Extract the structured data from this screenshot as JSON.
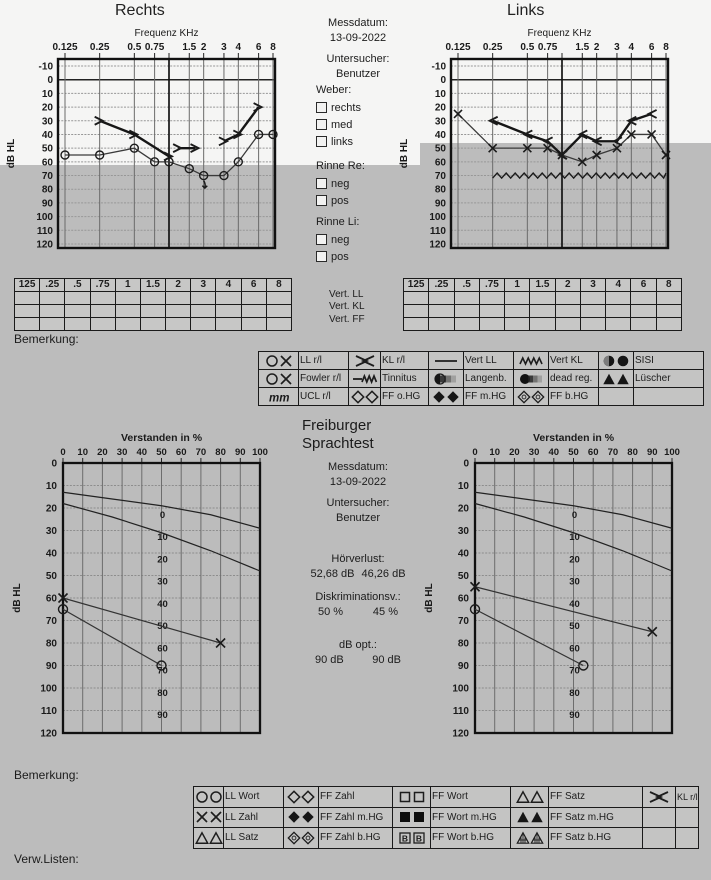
{
  "colors": {
    "band_gray": "#bcbcbc",
    "paper_white": "#f5f5f4",
    "cell_gray": "#c7c7c6",
    "ink": "#1c1c1c"
  },
  "header": {
    "right_title": "Rechts",
    "left_title": "Links"
  },
  "info_top": {
    "messdatum_label": "Messdatum:",
    "messdatum_value": "13-09-2022",
    "untersucher_label": "Untersucher:",
    "untersucher_value": "Benutzer",
    "weber": {
      "label": "Weber:",
      "options": [
        "rechts",
        "med",
        "links"
      ],
      "checked": [
        false,
        false,
        false
      ]
    },
    "rinne_re": {
      "label": "Rinne Re:",
      "options": [
        "neg",
        "pos"
      ],
      "checked": [
        false,
        false
      ]
    },
    "rinne_li": {
      "label": "Rinne Li:",
      "options": [
        "neg",
        "pos"
      ],
      "checked": [
        false,
        false
      ]
    }
  },
  "freq_table": {
    "headers": [
      "125",
      ".25",
      ".5",
      ".75",
      "1",
      "1.5",
      "2",
      "3",
      "4",
      "6",
      "8"
    ],
    "empty_rows": 3
  },
  "vert_labels": [
    "Vert. LL",
    "Vert. KL",
    "Vert. FF"
  ],
  "bemerkung_label": "Bemerkung:",
  "verw_listen_label": "Verw.Listen:",
  "legend_top": {
    "rows": [
      [
        {
          "icons": [
            "circle",
            "cross"
          ],
          "label": "LL r/l"
        },
        {
          "icons": [
            "chevrons"
          ],
          "label": "KL r/l"
        },
        {
          "icons": [
            "hline"
          ],
          "label": "Vert LL"
        },
        {
          "icons": [
            "zigzag"
          ],
          "label": "Vert KL"
        },
        {
          "icons": [
            "disc-shaded",
            "disc"
          ],
          "label": "SISI"
        }
      ],
      [
        {
          "icons": [
            "circle",
            "cross"
          ],
          "label": "Fowler r/l"
        },
        {
          "icons": [
            "line-zigzag"
          ],
          "label": "Tinnitus"
        },
        {
          "icons": [
            "halfdisc-bar"
          ],
          "label": "Langenb."
        },
        {
          "icons": [
            "disc-bar"
          ],
          "label": "dead reg."
        },
        {
          "icons": [
            "tri-filled",
            "tri-filled"
          ],
          "label": "Lüscher"
        }
      ],
      [
        {
          "icons": [
            "mm"
          ],
          "label": "UCL r/l"
        },
        {
          "icons": [
            "diamond",
            "diamond"
          ],
          "label": "FF o.HG"
        },
        {
          "icons": [
            "diamond-filled",
            "diamond-filled"
          ],
          "label": "FF m.HG"
        },
        {
          "icons": [
            "diamond-dot",
            "diamond-dot"
          ],
          "label": "FF b.HG"
        },
        {
          "icons": [],
          "label": ""
        }
      ]
    ]
  },
  "legend_bottom": {
    "rows": [
      [
        {
          "icons": [
            "circle",
            "circle"
          ],
          "label": "LL Wort"
        },
        {
          "icons": [
            "diamond",
            "diamond"
          ],
          "label": "FF Zahl"
        },
        {
          "icons": [
            "square",
            "square"
          ],
          "label": "FF Wort"
        },
        {
          "icons": [
            "tri",
            "tri"
          ],
          "label": "FF Satz"
        },
        {
          "icons": [
            "chevrons"
          ],
          "label": "KL r/l"
        }
      ],
      [
        {
          "icons": [
            "cross",
            "cross"
          ],
          "label": "LL Zahl"
        },
        {
          "icons": [
            "diamond-filled",
            "diamond-filled"
          ],
          "label": "FF Zahl m.HG"
        },
        {
          "icons": [
            "square-filled",
            "square-filled"
          ],
          "label": "FF Wort m.HG"
        },
        {
          "icons": [
            "tri-filled",
            "tri-filled"
          ],
          "label": "FF Satz m.HG"
        },
        {
          "icons": [],
          "label": ""
        }
      ],
      [
        {
          "icons": [
            "tri",
            "tri"
          ],
          "label": "LL Satz"
        },
        {
          "icons": [
            "diamond-dot",
            "diamond-dot"
          ],
          "label": "FF Zahl b.HG"
        },
        {
          "icons": [
            "square-b",
            "square-b"
          ],
          "label": "FF Wort b.HG"
        },
        {
          "icons": [
            "tri-hatch",
            "tri-hatch"
          ],
          "label": "FF Satz b.HG"
        },
        {
          "icons": [],
          "label": ""
        }
      ]
    ]
  },
  "speech_info": {
    "title_line1": "Freiburger",
    "title_line2": "Sprachtest",
    "messdatum_label": "Messdatum:",
    "messdatum_value": "13-09-2022",
    "untersucher_label": "Untersucher:",
    "untersucher_value": "Benutzer",
    "hoerverlust_label": "Hörverlust:",
    "hoerverlust_values": [
      "52,68 dB",
      "46,26 dB"
    ],
    "diskrimination_label": "Diskriminationsv.:",
    "diskrimination_values": [
      "50 %",
      "45 %"
    ],
    "db_opt_label": "dB opt.:",
    "db_opt_values": [
      "90 dB",
      "90 dB"
    ]
  },
  "chart_data": [
    {
      "id": "audiogram_right",
      "type": "line",
      "title": "Rechts",
      "xlabel": "Frequenz KHz",
      "ylabel": "dB HL",
      "frequencies": [
        0.125,
        0.25,
        0.5,
        0.75,
        1,
        1.5,
        2,
        3,
        4,
        6,
        8
      ],
      "x_tick_labels": [
        "0.125",
        "0.25",
        "0.5",
        "0.75",
        "",
        "1.5",
        "2",
        "3",
        "4",
        "6",
        "8"
      ],
      "ylim": [
        -10,
        120
      ],
      "y_tick_step": 10,
      "grid": true,
      "series": [
        {
          "name": "Luftleitung rechts (LL)",
          "marker": "circle",
          "points": [
            [
              0.125,
              55
            ],
            [
              0.25,
              55
            ],
            [
              0.5,
              50
            ],
            [
              0.75,
              60
            ],
            [
              1,
              60
            ],
            [
              1.5,
              65
            ],
            [
              2,
              70
            ],
            [
              3,
              70
            ],
            [
              4,
              60
            ],
            [
              6,
              40
            ],
            [
              8,
              40
            ]
          ]
        },
        {
          "name": "Knochenleitung rechts (KL)",
          "marker": "gt",
          "bold": true,
          "segments": [
            [
              [
                0.25,
                30
              ],
              [
                0.5,
                40
              ],
              [
                1,
                56
              ]
            ],
            [
              [
                1.2,
                50
              ],
              [
                1.7,
                50
              ]
            ],
            [
              [
                3,
                45
              ],
              [
                4,
                40
              ],
              [
                6,
                20
              ]
            ]
          ]
        }
      ],
      "no_response": [
        [
          2,
          70
        ]
      ]
    },
    {
      "id": "audiogram_left",
      "type": "line",
      "title": "Links",
      "xlabel": "Frequenz KHz",
      "ylabel": "dB HL",
      "frequencies": [
        0.125,
        0.25,
        0.5,
        0.75,
        1,
        1.5,
        2,
        3,
        4,
        6,
        8
      ],
      "x_tick_labels": [
        "0.125",
        "0.25",
        "0.5",
        "0.75",
        "",
        "1.5",
        "2",
        "3",
        "4",
        "6",
        "8"
      ],
      "ylim": [
        -10,
        120
      ],
      "y_tick_step": 10,
      "grid": true,
      "series": [
        {
          "name": "Luftleitung links (LL)",
          "marker": "x",
          "points": [
            [
              0.125,
              25
            ],
            [
              0.25,
              50
            ],
            [
              0.5,
              50
            ],
            [
              0.75,
              50
            ],
            [
              1,
              55
            ],
            [
              1.5,
              60
            ],
            [
              2,
              55
            ],
            [
              3,
              50
            ],
            [
              4,
              40
            ],
            [
              6,
              40
            ],
            [
              8,
              55
            ]
          ]
        },
        {
          "name": "Knochenleitung links (KL)",
          "marker": "lt",
          "bold": true,
          "segments": [
            [
              [
                0.25,
                30
              ],
              [
                0.5,
                40
              ],
              [
                0.75,
                45
              ],
              [
                1,
                55
              ],
              [
                1.5,
                40
              ],
              [
                2,
                45
              ],
              [
                3,
                45
              ],
              [
                4,
                30
              ],
              [
                6,
                25
              ]
            ]
          ]
        }
      ],
      "tinnitus": {
        "db": 70,
        "from": 0.25,
        "to": 8
      }
    },
    {
      "id": "speech_right_ear",
      "type": "line",
      "title": "Freiburger Sprachtest (Rechts)",
      "xlabel": "Verstanden in %",
      "ylabel": "dB HL",
      "xlim": [
        0,
        100
      ],
      "x_tick_step": 10,
      "ylim": [
        0,
        120
      ],
      "y_tick_step": 10,
      "grid": true,
      "inner_scale": {
        "x": 50,
        "start_db": 23,
        "step_db": 9.9,
        "values": [
          "0",
          "10",
          "20",
          "30",
          "40",
          "50",
          "60",
          "70",
          "80",
          "90"
        ]
      },
      "ref_curves": [
        [
          [
            0,
            13
          ],
          [
            25,
            16
          ],
          [
            50,
            19
          ],
          [
            75,
            23
          ],
          [
            100,
            29
          ]
        ],
        [
          [
            0,
            18
          ],
          [
            25,
            24
          ],
          [
            50,
            31
          ],
          [
            75,
            39
          ],
          [
            100,
            48
          ]
        ]
      ],
      "series": [
        {
          "name": "LL Zahl (X)",
          "marker": "x",
          "points": [
            [
              0,
              60
            ],
            [
              80,
              80
            ]
          ]
        },
        {
          "name": "LL Wort (O)",
          "marker": "circle",
          "points": [
            [
              0,
              65
            ],
            [
              50,
              90
            ]
          ]
        }
      ]
    },
    {
      "id": "speech_left_ear",
      "type": "line",
      "title": "Freiburger Sprachtest (Links)",
      "xlabel": "Verstanden in %",
      "ylabel": "dB HL",
      "xlim": [
        0,
        100
      ],
      "x_tick_step": 10,
      "ylim": [
        0,
        120
      ],
      "y_tick_step": 10,
      "grid": true,
      "inner_scale": {
        "x": 50,
        "start_db": 23,
        "step_db": 9.9,
        "values": [
          "0",
          "10",
          "20",
          "30",
          "40",
          "50",
          "60",
          "70",
          "80",
          "90"
        ]
      },
      "ref_curves": [
        [
          [
            0,
            13
          ],
          [
            25,
            16
          ],
          [
            50,
            19
          ],
          [
            75,
            23
          ],
          [
            100,
            29
          ]
        ],
        [
          [
            0,
            18
          ],
          [
            25,
            24
          ],
          [
            50,
            31
          ],
          [
            75,
            39
          ],
          [
            100,
            48
          ]
        ]
      ],
      "series": [
        {
          "name": "LL Zahl (X)",
          "marker": "x",
          "points": [
            [
              0,
              55
            ],
            [
              90,
              75
            ]
          ]
        },
        {
          "name": "LL Wort (O)",
          "marker": "circle",
          "points": [
            [
              0,
              65
            ],
            [
              55,
              90
            ]
          ]
        }
      ]
    }
  ]
}
